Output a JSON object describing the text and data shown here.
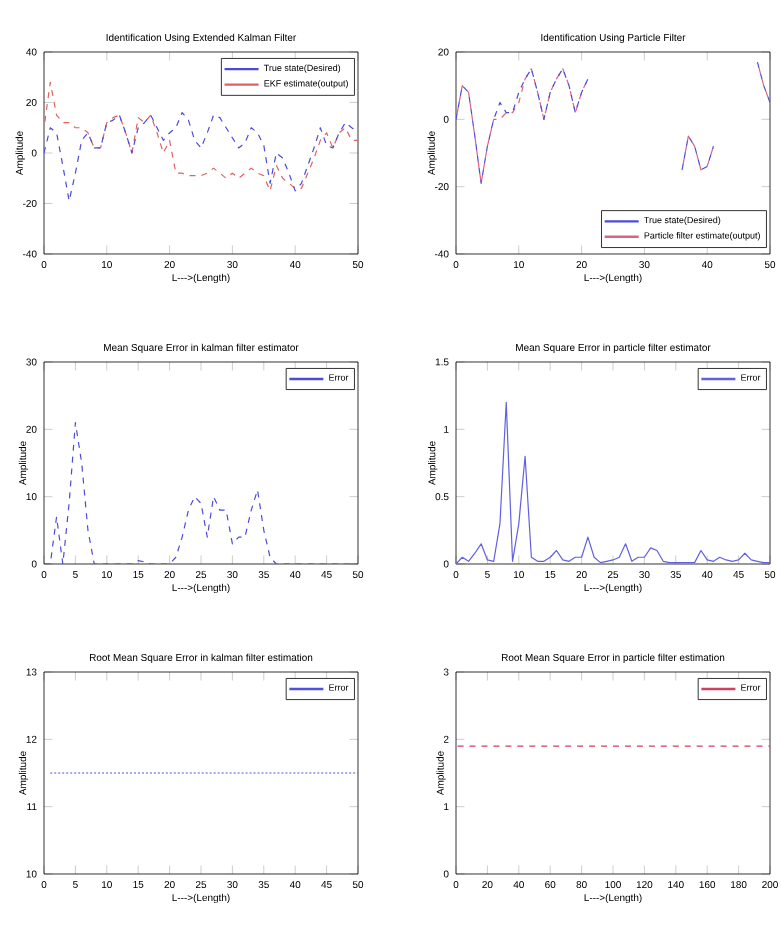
{
  "chart_data": [
    {
      "type": "line",
      "title": "Identification Using Extended Kalman Filter",
      "xlabel": "L--->(Length)",
      "ylabel": "Amplitude",
      "xlim": [
        0,
        50
      ],
      "ylim": [
        -40,
        40
      ],
      "xticks": [
        0,
        10,
        20,
        30,
        40,
        50
      ],
      "yticks": [
        -40,
        -20,
        0,
        20,
        40
      ],
      "legend": "top right",
      "line_style": "dashed",
      "x": [
        0,
        1,
        2,
        3,
        4,
        5,
        6,
        7,
        8,
        9,
        10,
        11,
        12,
        13,
        14,
        15,
        16,
        17,
        18,
        19,
        20,
        21,
        22,
        23,
        24,
        25,
        26,
        27,
        28,
        29,
        30,
        31,
        32,
        33,
        34,
        35,
        36,
        37,
        38,
        39,
        40,
        41,
        42,
        43,
        44,
        45,
        46,
        47,
        48,
        49,
        50
      ],
      "series": [
        {
          "name": "True state(Desired)",
          "color": "#4b4bd8",
          "values": [
            0,
            10,
            8,
            -5,
            -19,
            -8,
            5,
            8,
            2,
            2,
            12,
            13,
            15,
            8,
            0,
            10,
            12,
            15,
            10,
            5,
            8,
            10,
            16,
            13,
            5,
            2,
            8,
            15,
            14,
            10,
            6,
            2,
            4,
            10,
            8,
            3,
            -12,
            0,
            -2,
            -8,
            -15,
            -12,
            -5,
            2,
            10,
            3,
            2,
            8,
            12,
            10,
            8
          ]
        },
        {
          "name": "EKF estimate(output)",
          "color": "#e06060",
          "values": [
            10,
            28,
            15,
            12,
            12,
            10,
            10,
            8,
            2,
            2,
            12,
            14,
            15,
            8,
            0,
            14,
            12,
            15,
            8,
            0,
            5,
            -8,
            -8,
            -9,
            -9,
            -9,
            -8,
            -6,
            -8,
            -10,
            -8,
            -10,
            -8,
            -6,
            -8,
            -9,
            -15,
            -5,
            -10,
            -12,
            -14,
            -14,
            -8,
            -2,
            5,
            8,
            2,
            8,
            10,
            5,
            5
          ]
        }
      ]
    },
    {
      "type": "line",
      "title": "Identification Using Particle Filter",
      "xlabel": "L--->(Length)",
      "ylabel": "Amplitude",
      "xlim": [
        0,
        50
      ],
      "ylim": [
        -40,
        20
      ],
      "xticks": [
        0,
        10,
        20,
        30,
        40,
        50
      ],
      "yticks": [
        -40,
        -20,
        0,
        20
      ],
      "legend": "bottom right",
      "line_style": "dashed",
      "x": [
        0,
        1,
        2,
        3,
        4,
        5,
        6,
        7,
        8,
        9,
        10,
        11,
        12,
        13,
        14,
        15,
        16,
        17,
        18,
        19,
        20,
        21,
        22,
        23,
        24,
        25,
        26,
        27,
        28,
        29,
        30,
        31,
        32,
        33,
        34,
        35,
        36,
        37,
        38,
        39,
        40,
        41,
        42,
        43,
        44,
        45,
        46,
        47,
        48,
        49,
        50
      ],
      "series": [
        {
          "name": "True state(Desired)",
          "color": "#4b4bd8",
          "values": [
            0,
            10,
            8,
            -5,
            -19,
            -8,
            0,
            5,
            2,
            2,
            8,
            12,
            15,
            8,
            0,
            8,
            12,
            15,
            10,
            2,
            8,
            12,
            null,
            null,
            null,
            null,
            null,
            null,
            null,
            null,
            null,
            null,
            null,
            null,
            null,
            null,
            -15,
            -5,
            -8,
            -15,
            -14,
            -8,
            null,
            null,
            null,
            null,
            null,
            null,
            17,
            10,
            5
          ]
        },
        {
          "name": "Particle filter estimate(output)",
          "color": "#e06080",
          "values": [
            0,
            10,
            8,
            -5,
            -19,
            -8,
            0,
            0,
            2,
            2,
            5,
            12,
            15,
            8,
            0,
            8,
            12,
            15,
            10,
            2,
            8,
            12,
            null,
            null,
            null,
            null,
            null,
            null,
            null,
            null,
            null,
            null,
            null,
            null,
            null,
            null,
            -15,
            -5,
            -8,
            -15,
            -14,
            -8,
            null,
            null,
            null,
            null,
            null,
            null,
            17,
            10,
            5
          ]
        }
      ]
    },
    {
      "type": "line",
      "title": "Mean Square Error in kalman filter estimator",
      "xlabel": "L--->(Length)",
      "ylabel": "Amplitude",
      "xlim": [
        0,
        50
      ],
      "ylim": [
        0,
        30
      ],
      "xticks": [
        0,
        5,
        10,
        15,
        20,
        25,
        30,
        35,
        40,
        45,
        50
      ],
      "yticks": [
        0,
        10,
        20,
        30
      ],
      "legend": "top right",
      "line_style": "dashed",
      "x": [
        0,
        1,
        2,
        3,
        4,
        5,
        6,
        7,
        8,
        9,
        10,
        11,
        12,
        13,
        14,
        15,
        16,
        17,
        18,
        19,
        20,
        21,
        22,
        23,
        24,
        25,
        26,
        27,
        28,
        29,
        30,
        31,
        32,
        33,
        34,
        35,
        36,
        37,
        38,
        39,
        40,
        41,
        42,
        43,
        44,
        45,
        46,
        47,
        48,
        49,
        50
      ],
      "series": [
        {
          "name": "Error",
          "color": "#4b4bd8",
          "values": [
            0,
            0,
            7,
            0,
            9,
            21,
            15,
            5,
            0,
            0,
            0,
            0,
            0,
            0,
            0,
            0.5,
            0.3,
            0,
            0,
            0,
            0,
            1,
            4,
            8,
            10,
            9,
            4,
            10,
            8,
            8,
            3,
            4,
            4,
            8,
            11,
            5,
            1,
            0,
            0,
            0,
            0,
            0,
            0,
            0,
            0,
            0,
            0,
            0,
            0,
            0,
            0
          ]
        }
      ]
    },
    {
      "type": "line",
      "title": "Mean Square Error in particle filter estimator",
      "xlabel": "L--->(Length)",
      "ylabel": "Amplitude",
      "xlim": [
        0,
        50
      ],
      "ylim": [
        0,
        1.5
      ],
      "xticks": [
        0,
        5,
        10,
        15,
        20,
        25,
        30,
        35,
        40,
        45,
        50
      ],
      "yticks": [
        0,
        0.5,
        1,
        1.5
      ],
      "legend": "top right",
      "line_style": "solid",
      "x": [
        0,
        1,
        2,
        3,
        4,
        5,
        6,
        7,
        8,
        9,
        10,
        11,
        12,
        13,
        14,
        15,
        16,
        17,
        18,
        19,
        20,
        21,
        22,
        23,
        24,
        25,
        26,
        27,
        28,
        29,
        30,
        31,
        32,
        33,
        34,
        35,
        36,
        37,
        38,
        39,
        40,
        41,
        42,
        43,
        44,
        45,
        46,
        47,
        48,
        49,
        50
      ],
      "series": [
        {
          "name": "Error",
          "color": "#6060e0",
          "values": [
            0,
            0.05,
            0.02,
            0.08,
            0.15,
            0.03,
            0.02,
            0.3,
            1.2,
            0.02,
            0.3,
            0.8,
            0.05,
            0.02,
            0.02,
            0.05,
            0.1,
            0.03,
            0.02,
            0.05,
            0.05,
            0.2,
            0.05,
            0.01,
            0.02,
            0.03,
            0.05,
            0.15,
            0.02,
            0.05,
            0.05,
            0.12,
            0.1,
            0.02,
            0.01,
            0.01,
            0.01,
            0.01,
            0.01,
            0.1,
            0.03,
            0.02,
            0.05,
            0.03,
            0.02,
            0.03,
            0.08,
            0.03,
            0.02,
            0.01,
            0.01
          ]
        }
      ]
    },
    {
      "type": "line",
      "title": "Root Mean Square Error in kalman filter estimation",
      "xlabel": "L--->(Length)",
      "ylabel": "Amplitude",
      "xlim": [
        0,
        50
      ],
      "ylim": [
        10,
        13
      ],
      "xticks": [
        0,
        5,
        10,
        15,
        20,
        25,
        30,
        35,
        40,
        45,
        50
      ],
      "yticks": [
        10,
        11,
        12,
        13
      ],
      "legend": "top right",
      "line_style": "dotted",
      "x": [
        1,
        50
      ],
      "series": [
        {
          "name": "Error",
          "color": "#5050e0",
          "values": [
            11.5,
            11.5
          ]
        }
      ]
    },
    {
      "type": "line",
      "title": "Root Mean Square Error in particle filter estimation",
      "xlabel": "L--->(Length)",
      "ylabel": "Amplitude",
      "xlim": [
        0,
        200
      ],
      "ylim": [
        0,
        3
      ],
      "xticks": [
        0,
        20,
        40,
        60,
        80,
        100,
        120,
        140,
        160,
        180,
        200
      ],
      "yticks": [
        0,
        1,
        2,
        3
      ],
      "legend": "top right",
      "line_style": "dashed",
      "x": [
        1,
        200
      ],
      "series": [
        {
          "name": "Error",
          "color": "#d04060",
          "values": [
            1.9,
            1.9
          ]
        }
      ]
    }
  ]
}
